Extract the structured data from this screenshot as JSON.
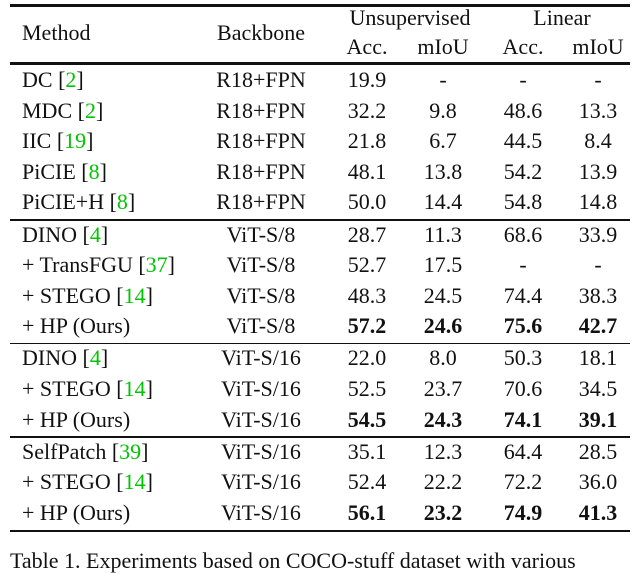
{
  "header": {
    "method": "Method",
    "backbone": "Backbone",
    "unsupervised": "Unsupervised",
    "linear": "Linear",
    "acc": "Acc.",
    "miou": "mIoU"
  },
  "groups": [
    {
      "rows": [
        {
          "method": "DC",
          "cite": "2",
          "backbone": "R18+FPN",
          "values": [
            "19.9",
            "-",
            "-",
            "-"
          ],
          "bold": [
            false,
            false,
            false,
            false
          ]
        },
        {
          "method": "MDC",
          "cite": "2",
          "backbone": "R18+FPN",
          "values": [
            "32.2",
            "9.8",
            "48.6",
            "13.3"
          ],
          "bold": [
            false,
            false,
            false,
            false
          ]
        },
        {
          "method": "IIC",
          "cite": "19",
          "backbone": "R18+FPN",
          "values": [
            "21.8",
            "6.7",
            "44.5",
            "8.4"
          ],
          "bold": [
            false,
            false,
            false,
            false
          ]
        },
        {
          "method": "PiCIE",
          "cite": "8",
          "backbone": "R18+FPN",
          "values": [
            "48.1",
            "13.8",
            "54.2",
            "13.9"
          ],
          "bold": [
            false,
            false,
            false,
            false
          ]
        },
        {
          "method": "PiCIE+H",
          "cite": "8",
          "backbone": "R18+FPN",
          "values": [
            "50.0",
            "14.4",
            "54.8",
            "14.8"
          ],
          "bold": [
            false,
            false,
            false,
            false
          ]
        }
      ]
    },
    {
      "rows": [
        {
          "method": "DINO",
          "cite": "4",
          "backbone": "ViT-S/8",
          "values": [
            "28.7",
            "11.3",
            "68.6",
            "33.9"
          ],
          "bold": [
            false,
            false,
            false,
            false
          ]
        },
        {
          "method": "+ TransFGU",
          "cite": "37",
          "backbone": "ViT-S/8",
          "values": [
            "52.7",
            "17.5",
            "-",
            "-"
          ],
          "bold": [
            false,
            false,
            false,
            false
          ]
        },
        {
          "method": "+ STEGO",
          "cite": "14",
          "backbone": "ViT-S/8",
          "values": [
            "48.3",
            "24.5",
            "74.4",
            "38.3"
          ],
          "bold": [
            false,
            false,
            false,
            false
          ]
        },
        {
          "method": "+ HP (Ours)",
          "cite": "",
          "backbone": "ViT-S/8",
          "values": [
            "57.2",
            "24.6",
            "75.6",
            "42.7"
          ],
          "bold": [
            true,
            true,
            true,
            true
          ]
        }
      ]
    },
    {
      "rows": [
        {
          "method": "DINO",
          "cite": "4",
          "backbone": "ViT-S/16",
          "values": [
            "22.0",
            "8.0",
            "50.3",
            "18.1"
          ],
          "bold": [
            false,
            false,
            false,
            false
          ]
        },
        {
          "method": "+ STEGO",
          "cite": "14",
          "backbone": "ViT-S/16",
          "values": [
            "52.5",
            "23.7",
            "70.6",
            "34.5"
          ],
          "bold": [
            false,
            false,
            false,
            false
          ]
        },
        {
          "method": "+ HP (Ours)",
          "cite": "",
          "backbone": "ViT-S/16",
          "values": [
            "54.5",
            "24.3",
            "74.1",
            "39.1"
          ],
          "bold": [
            true,
            true,
            true,
            true
          ]
        }
      ]
    },
    {
      "rows": [
        {
          "method": "SelfPatch",
          "cite": "39",
          "backbone": "ViT-S/16",
          "values": [
            "35.1",
            "12.3",
            "64.4",
            "28.5"
          ],
          "bold": [
            false,
            false,
            false,
            false
          ]
        },
        {
          "method": "+ STEGO",
          "cite": "14",
          "backbone": "ViT-S/16",
          "values": [
            "52.4",
            "22.2",
            "72.2",
            "36.0"
          ],
          "bold": [
            false,
            false,
            false,
            false
          ]
        },
        {
          "method": "+ HP (Ours)",
          "cite": "",
          "backbone": "ViT-S/16",
          "values": [
            "56.1",
            "23.2",
            "74.9",
            "41.3"
          ],
          "bold": [
            true,
            true,
            true,
            true
          ]
        }
      ]
    }
  ],
  "caption": "Table 1. Experiments based on COCO-stuff dataset with various",
  "colors": {
    "citation": "#00c400"
  }
}
